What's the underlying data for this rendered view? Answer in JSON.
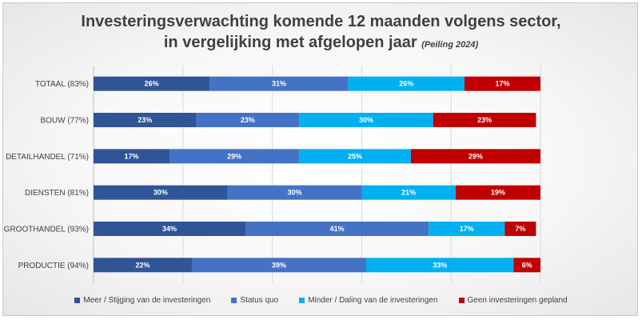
{
  "chart_data": {
    "type": "bar",
    "orientation": "horizontal",
    "stacked": true,
    "title_line1": "Investeringsverwachting komende 12 maanden volgens sector,",
    "title_line2": "in vergelijking met afgelopen jaar",
    "subtitle": "(Peiling 2024)",
    "categories": [
      "TOTAAL (83%)",
      "BOUW (77%)",
      "DETAILHANDEL (71%)",
      "DIENSTEN (81%)",
      "GROOTHANDEL (93%)",
      "PRODUCTIE (94%)"
    ],
    "series": [
      {
        "name": "Meer / Stijging van de investeringen",
        "color": "#2f5597",
        "values": [
          26,
          23,
          17,
          30,
          34,
          22
        ]
      },
      {
        "name": "Status quo",
        "color": "#4472c4",
        "values": [
          31,
          23,
          29,
          30,
          41,
          39
        ]
      },
      {
        "name": "Minder / Daling van de investeringen",
        "color": "#00b0f0",
        "values": [
          26,
          30,
          25,
          21,
          17,
          33
        ]
      },
      {
        "name": "Geen investeringen gepland",
        "color": "#c00000",
        "values": [
          17,
          23,
          29,
          19,
          7,
          6
        ]
      }
    ],
    "value_suffix": "%",
    "xlim": [
      0,
      100
    ],
    "grid": true,
    "legend_position": "bottom"
  }
}
